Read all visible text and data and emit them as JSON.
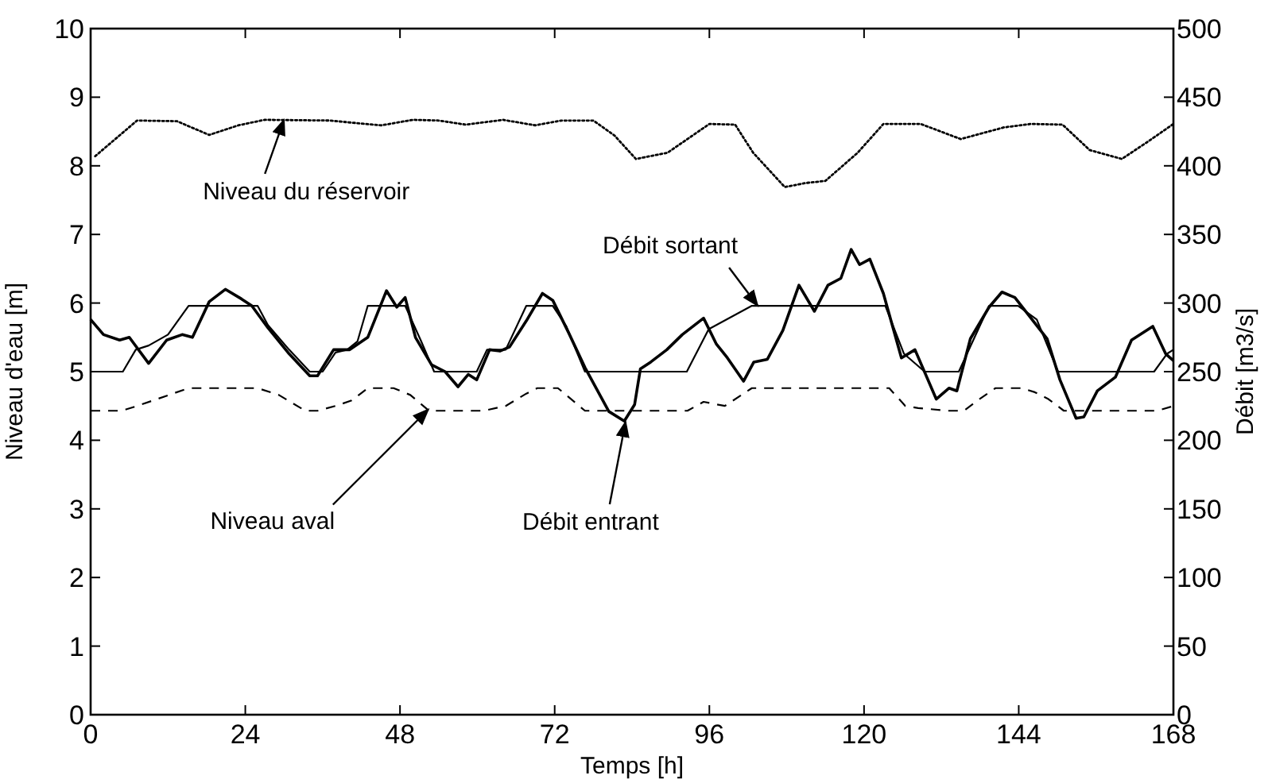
{
  "chart_data": {
    "type": "line",
    "xlabel": "Temps [h]",
    "ylabel": "Niveau d'eau [m]",
    "y2label": "Débit [m3/s]",
    "xlim": [
      0,
      168
    ],
    "xticks": [
      0,
      24,
      48,
      72,
      96,
      120,
      144,
      168
    ],
    "ylim": [
      0,
      10
    ],
    "yticks": [
      0,
      1,
      2,
      3,
      4,
      5,
      6,
      7,
      8,
      9,
      10
    ],
    "y2lim": [
      0,
      500
    ],
    "y2ticks": [
      0,
      50,
      100,
      150,
      200,
      250,
      300,
      350,
      400,
      450,
      500
    ],
    "grid": false,
    "series": [
      {
        "color": "#000000",
        "line_style": "dotted",
        "x": [
          0.7,
          7.2,
          13.4,
          18.4,
          22.9,
          27,
          37,
          45.1,
          50,
          54,
          58.2,
          64,
          69,
          73,
          78,
          81.3,
          84.6,
          89.5,
          96,
          100,
          102.8,
          107.7,
          111,
          114,
          119,
          123,
          128.8,
          135,
          141.7,
          145.9,
          150.8,
          155,
          160,
          164,
          168
        ],
        "values": [
          8.14,
          8.66,
          8.65,
          8.45,
          8.59,
          8.67,
          8.66,
          8.59,
          8.67,
          8.66,
          8.6,
          8.67,
          8.59,
          8.66,
          8.66,
          8.44,
          8.1,
          8.19,
          8.61,
          8.6,
          8.19,
          7.69,
          7.75,
          7.78,
          8.19,
          8.61,
          8.61,
          8.39,
          8.56,
          8.61,
          8.6,
          8.23,
          8.1,
          8.35,
          8.61
        ]
      },
      {
        "color": "#000000",
        "line_style": "dashed",
        "x": [
          0,
          4.8,
          7.2,
          9.7,
          15.2,
          25.9,
          29.2,
          33.3,
          35.2,
          38,
          40.5,
          43,
          47,
          49.6,
          52.5,
          61,
          64.4,
          67.6,
          69.3,
          72.5,
          76.7,
          92.6,
          95.1,
          98.4,
          102.6,
          123.9,
          126.4,
          128.4,
          133,
          135.5,
          137.9,
          140.4,
          144.5,
          146.5,
          148.6,
          151,
          165.5,
          168
        ],
        "values": [
          4.43,
          4.43,
          4.5,
          4.58,
          4.76,
          4.76,
          4.66,
          4.43,
          4.43,
          4.5,
          4.58,
          4.76,
          4.76,
          4.66,
          4.43,
          4.43,
          4.5,
          4.68,
          4.76,
          4.76,
          4.43,
          4.43,
          4.56,
          4.5,
          4.76,
          4.76,
          4.5,
          4.47,
          4.43,
          4.43,
          4.6,
          4.76,
          4.76,
          4.7,
          4.6,
          4.43,
          4.43,
          4.5
        ]
      },
      {
        "color": "#000000",
        "line_style": "solid",
        "axis": "y2",
        "x": [
          0,
          5,
          7,
          9,
          12,
          15.2,
          25.9,
          27.5,
          30.8,
          34,
          36,
          38,
          39.8,
          41.4,
          43,
          48.8,
          51.3,
          53.3,
          59.9,
          61.5,
          64.4,
          67.6,
          71.7,
          73.8,
          76.7,
          92.5,
          95.9,
          102.6,
          123.3,
          126.2,
          129.4,
          134.7,
          139.4,
          143.9,
          146.8,
          150.1,
          165,
          167,
          168
        ],
        "values": [
          250,
          250,
          266,
          269,
          277,
          298,
          298,
          284,
          266,
          250,
          250,
          264,
          266,
          272,
          298,
          298,
          272,
          250,
          250,
          266,
          266,
          298,
          298,
          283,
          250,
          250,
          281,
          298,
          298,
          263,
          250,
          250,
          298,
          298,
          288,
          250,
          250,
          263,
          266
        ]
      },
      {
        "color": "#000000",
        "line_style": "solid",
        "axis": "y2",
        "x": [
          0,
          2,
          4.5,
          6,
          9,
          11.8,
          14.2,
          15.8,
          18.4,
          20.9,
          23.4,
          25,
          27.5,
          30.8,
          34,
          35.2,
          37.7,
          40.2,
          43,
          45.9,
          47.5,
          48.8,
          50.4,
          52.9,
          55,
          57,
          58.6,
          59.9,
          61.9,
          63.5,
          65,
          67.6,
          70.1,
          71.7,
          74.2,
          76.7,
          80.4,
          82.8,
          84.4,
          85.3,
          86.9,
          89.4,
          91.8,
          95.1,
          97.1,
          98.8,
          101.3,
          102.9,
          105,
          107.4,
          109.9,
          112.3,
          114.4,
          116.4,
          118,
          119.3,
          120.9,
          123,
          125.8,
          127.9,
          131.2,
          133.2,
          134.4,
          136.5,
          139.4,
          141.4,
          143.4,
          145.9,
          148.4,
          150.4,
          152.9,
          154.1,
          156.2,
          159,
          161.5,
          164.8,
          166.8,
          168
        ],
        "values": [
          288,
          277,
          273,
          275,
          256,
          273,
          277,
          275,
          301,
          310,
          303,
          298,
          282,
          263,
          247,
          247,
          266,
          266,
          275,
          309,
          297,
          304,
          275,
          255,
          250,
          239,
          248,
          244,
          266,
          265,
          268,
          287,
          307,
          302,
          278,
          253,
          221,
          214,
          226,
          252,
          257,
          266,
          277,
          289,
          270,
          260,
          243,
          257,
          259,
          280,
          313,
          294,
          313,
          318,
          339,
          328,
          332,
          307,
          260,
          266,
          230,
          238,
          236,
          274,
          297,
          308,
          304,
          289,
          274,
          244,
          216,
          217,
          236,
          246,
          273,
          283,
          263,
          258
        ]
      }
    ],
    "annotations": [
      {
        "text": "Niveau du réservoir",
        "x": 30,
        "y": 8.67
      },
      {
        "text": "Débit sortant",
        "x": 103.5,
        "y": 5.96
      },
      {
        "text": "Niveau aval",
        "x": 52.4,
        "y": 4.45
      },
      {
        "text": "Débit entrant",
        "x": 83,
        "y": 4.27
      }
    ]
  }
}
